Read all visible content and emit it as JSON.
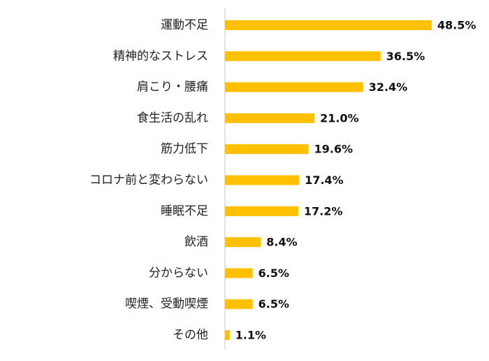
{
  "chart_data": {
    "type": "bar",
    "orientation": "horizontal",
    "categories": [
      "運動不足",
      "精神的なストレス",
      "肩こり・腰痛",
      "食生活の乱れ",
      "筋力低下",
      "コロナ前と変わらない",
      "睡眠不足",
      "飲酒",
      "分からない",
      "喫煙、受動喫煙",
      "その他"
    ],
    "values": [
      48.5,
      36.5,
      32.4,
      21.0,
      19.6,
      17.4,
      17.2,
      8.4,
      6.5,
      6.5,
      1.1
    ],
    "value_labels": [
      "48.5%",
      "36.5%",
      "32.4%",
      "21.0%",
      "19.6%",
      "17.4%",
      "17.2%",
      "8.4%",
      "6.5%",
      "6.5%",
      "1.1%"
    ],
    "title": "",
    "xlabel": "",
    "ylabel": "",
    "xlim": [
      0,
      48.5
    ],
    "grid": false,
    "bar_color": "#FFC000",
    "axis_color": "#D9D9D9"
  }
}
